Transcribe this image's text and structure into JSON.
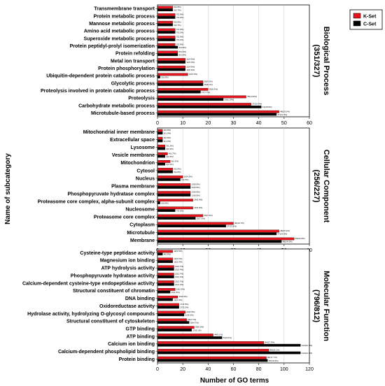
{
  "figure": {
    "ylabel": "Name of subcategory",
    "xlabel": "Number of GO terms",
    "legend": {
      "position": "top-right",
      "items": [
        {
          "name": "K-Set",
          "color": "#e8141c"
        },
        {
          "name": "C-Set",
          "color": "#000000"
        }
      ]
    }
  },
  "chart_data": [
    {
      "type": "bar",
      "orientation": "horizontal",
      "title": "Biological Process (351/327)",
      "xlim": [
        0,
        60
      ],
      "xticks": [
        0,
        10,
        20,
        30,
        40,
        50,
        60
      ],
      "grid": "vertical",
      "categories": [
        "Transmembrane transport",
        "Protein metabolic process",
        "Mannose metabolic process",
        "Amino acid metabolic process",
        "Superoxide metabolic process",
        "Protein peptidyl-prolyl isomerization",
        "Protein refolding",
        "Metal ion transport",
        "Protein phosphorylation",
        "Ubiquitin-dependent protein catabolic process",
        "Glycolytic process",
        "Proteolysis involved in protein catabolic process",
        "Proteolysis",
        "Carbohydrate metabolic process",
        "Microtubule-based process"
      ],
      "series": [
        {
          "name": "K-Set",
          "values": [
            6,
            7,
            6,
            7,
            7,
            7,
            8,
            11,
            11,
            12,
            18,
            20,
            35,
            37,
            48
          ]
        },
        {
          "name": "C-Set",
          "values": [
            6,
            7,
            6,
            7,
            7,
            8,
            8,
            11,
            11,
            1,
            18,
            17,
            26,
            41,
            47
          ]
        }
      ]
    },
    {
      "type": "bar",
      "orientation": "horizontal",
      "title": "Cellular Component (256/227)",
      "xlim": [
        0,
        60
      ],
      "xticks": [
        0,
        10,
        20,
        30,
        40,
        50,
        60
      ],
      "grid": "vertical",
      "categories": [
        "Mitochondrial inner membrane",
        "Extracellular space",
        "Lysosome",
        "Vesicle membrane",
        "Mitochondrion",
        "Cytosol",
        "Nucleus",
        "Plasma membrane",
        "Phosphopyruvate hydratase complex",
        "Proteasome core complex, alpha-subunit complex",
        "Nucleosome",
        "Proteasome core complex",
        "Cytoplasm",
        "Microtubule",
        "Membrane"
      ],
      "series": [
        {
          "name": "K-Set",
          "values": [
            2,
            2,
            3,
            4,
            5,
            6,
            10,
            13,
            13,
            14,
            14,
            18,
            30,
            48,
            54
          ]
        },
        {
          "name": "C-Set",
          "values": [
            2,
            2,
            3,
            3,
            3,
            6,
            9,
            13,
            13,
            1,
            7,
            15,
            27,
            47,
            49
          ]
        }
      ]
    },
    {
      "type": "bar",
      "orientation": "horizontal",
      "title": "Molecular Function (796/812)",
      "xlim": [
        0,
        120
      ],
      "xticks": [
        0,
        20,
        40,
        60,
        80,
        100,
        120
      ],
      "grid": "vertical",
      "categories": [
        "Cysteine-type peptidase activity",
        "Magnesium ion binding",
        "ATP hydrolysis activity",
        "Phosphopyruvate hydratase activity",
        "Calcium-dependent cysteine-type endopeptidase activity",
        "Structural constituent of chromatin",
        "DNA binding",
        "Oxidoreductase activity",
        "Hydrolase activity, hydrolyzing O-glycosyl compounds",
        "Structural constituent of cytoskeleton",
        "GTP binding",
        "ATP binding",
        "Calcium ion binding",
        "Calcium-dependent phospholipid binding",
        "Protein binding"
      ],
      "series": [
        {
          "name": "K-Set",
          "values": [
            12,
            12,
            13,
            13,
            13,
            14,
            16,
            17,
            22,
            23,
            29,
            44,
            84,
            88,
            86
          ]
        },
        {
          "name": "C-Set",
          "values": [
            4,
            12,
            13,
            13,
            13,
            10,
            12,
            17,
            21,
            25,
            27,
            51,
            113,
            113,
            87
          ]
        }
      ]
    }
  ]
}
